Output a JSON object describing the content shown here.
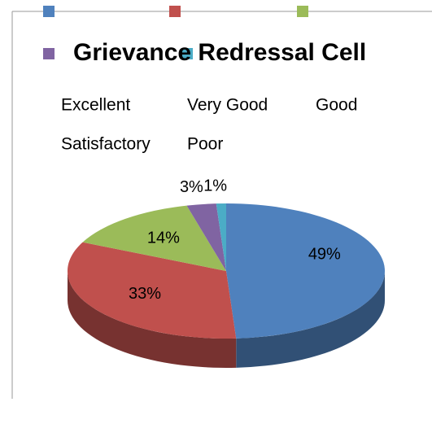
{
  "chart_data": {
    "type": "pie",
    "title": "Grievance Redressal Cell",
    "categories": [
      "Excellent",
      "Very Good",
      "Good",
      "Satisfactory",
      "Poor"
    ],
    "values": [
      49,
      33,
      14,
      3,
      1
    ],
    "value_labels": [
      "49%",
      "33%",
      "14%",
      "3%",
      "1%"
    ],
    "colors": [
      "#4f81bd",
      "#c0504d",
      "#9bbb59",
      "#8064a2",
      "#4bacc6"
    ]
  }
}
